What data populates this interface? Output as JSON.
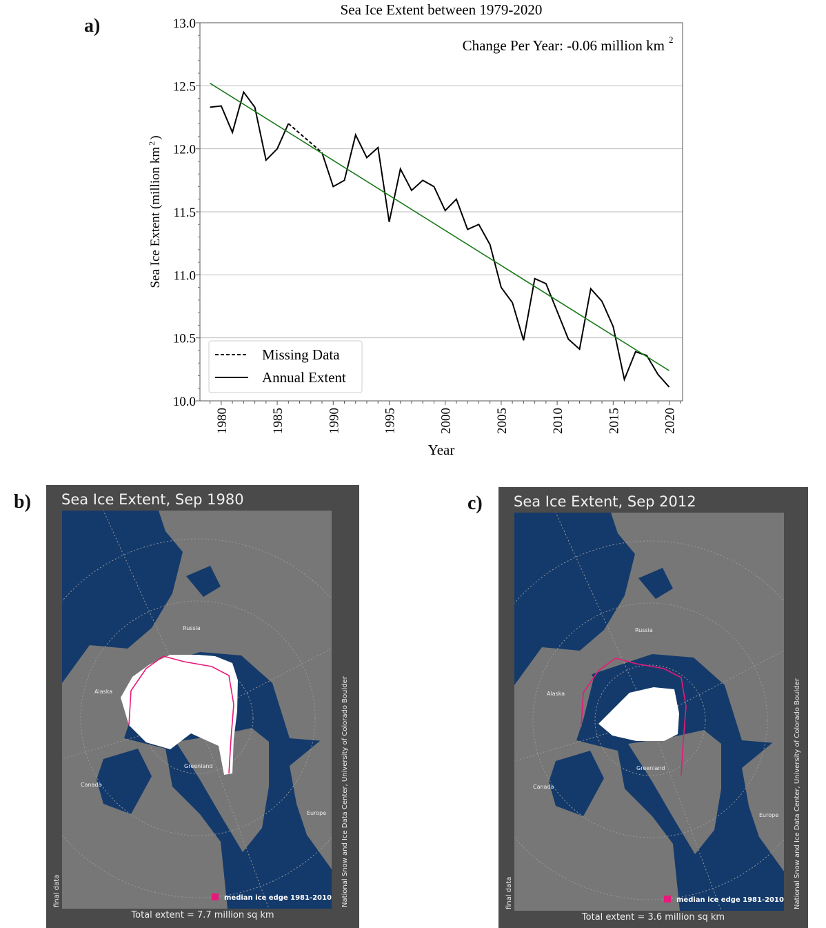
{
  "panels": {
    "a": "a)",
    "b": "b)",
    "c": "c)"
  },
  "chart_data": {
    "type": "line",
    "title": "Sea Ice Extent between 1979-2020",
    "annotation": "Change Per Year:  -0.06 million km",
    "annotation_sup": "2",
    "xlabel": "Year",
    "ylabel": "Sea Ice Extent (million km",
    "ylabel_sup": "2",
    "ylabel_end": ")",
    "xlim": [
      1978.1,
      2021.2
    ],
    "ylim": [
      10.0,
      13.0
    ],
    "xticks": [
      "1980",
      "1985",
      "1990",
      "1995",
      "2000",
      "2005",
      "2010",
      "2015",
      "2020"
    ],
    "yticks": [
      "10.0",
      "10.5",
      "11.0",
      "11.5",
      "12.0",
      "12.5",
      "13.0"
    ],
    "grid": "horizontal",
    "legend_position": "bottom-left",
    "series": [
      {
        "name": "Annual Extent",
        "style": "solid",
        "color": "#000000",
        "segments": [
          {
            "x": [
              1979,
              1980,
              1981,
              1982,
              1983,
              1984,
              1985,
              1986
            ],
            "y": [
              12.33,
              12.34,
              12.13,
              12.45,
              12.33,
              11.91,
              12.0,
              12.2
            ]
          },
          {
            "x": [
              1989,
              1990,
              1991,
              1992,
              1993,
              1994,
              1995,
              1996,
              1997,
              1998,
              1999,
              2000,
              2001,
              2002,
              2003,
              2004,
              2005,
              2006,
              2007,
              2008,
              2009,
              2010,
              2011,
              2012,
              2013,
              2014,
              2015,
              2016,
              2017,
              2018,
              2019,
              2020
            ],
            "y": [
              11.97,
              11.7,
              11.75,
              12.11,
              11.93,
              12.01,
              11.42,
              11.84,
              11.67,
              11.75,
              11.7,
              11.51,
              11.6,
              11.36,
              11.4,
              11.24,
              10.9,
              10.78,
              10.48,
              10.97,
              10.93,
              10.71,
              10.49,
              10.41,
              10.89,
              10.79,
              10.59,
              10.17,
              10.39,
              10.36,
              10.21,
              10.11
            ]
          }
        ]
      },
      {
        "name": "Missing Data",
        "style": "dashed",
        "color": "#000000",
        "x": [
          1986,
          1989
        ],
        "y": [
          12.2,
          11.97
        ]
      },
      {
        "name": "trend",
        "style": "solid",
        "color": "#1a7a1a",
        "x": [
          1979,
          2020
        ],
        "y": [
          12.52,
          10.24
        ]
      }
    ],
    "legend": [
      "Missing Data",
      "Annual Extent"
    ]
  },
  "maps": [
    {
      "title": "Sea Ice Extent, Sep 1980",
      "total": "Total extent = 7.7 million sq km",
      "legend": "median ice edge 1981-2010",
      "credit": "National Snow and Ice Data Center, University of Colorado Boulder",
      "status": "final data",
      "labels": {
        "russia": "Russia",
        "alaska": "Alaska",
        "canada": "Canada",
        "greenland": "Greenland",
        "europe": "Europe"
      },
      "ice_extent_million_sq_km": 7.7
    },
    {
      "title": "Sea Ice Extent, Sep 2012",
      "total": "Total extent = 3.6 million sq km",
      "legend": "median ice edge 1981-2010",
      "credit": "National Snow and Ice Data Center, University of Colorado Boulder",
      "status": "final data",
      "labels": {
        "russia": "Russia",
        "alaska": "Alaska",
        "canada": "Canada",
        "greenland": "Greenland",
        "europe": "Europe"
      },
      "ice_extent_million_sq_km": 3.6
    }
  ],
  "colors": {
    "ocean": "#143a6b",
    "land": "#777777",
    "ice": "#ffffff",
    "median_edge": "#e8197a",
    "frame": "#4a4a4a",
    "trend": "#1a7a1a"
  }
}
